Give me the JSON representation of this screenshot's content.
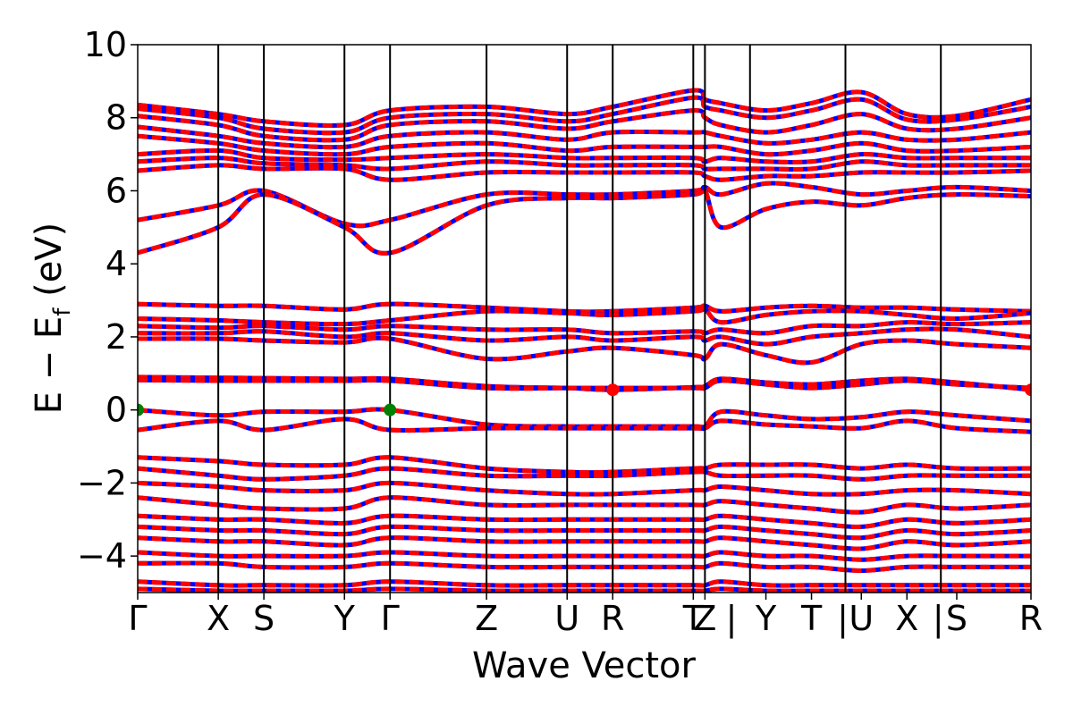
{
  "chart_data": {
    "type": "line",
    "title": "",
    "xlabel": "Wave Vector",
    "ylabel": {
      "main": "E − E",
      "sub": "f",
      "unit": " (eV)"
    },
    "ylim": [
      -5,
      10
    ],
    "yticks": [
      -4,
      -2,
      0,
      2,
      4,
      6,
      8,
      10
    ],
    "ytick_labels": [
      "−4",
      "−2",
      "0",
      "2",
      "4",
      "6",
      "8",
      "10"
    ],
    "grid": false,
    "xlim": [
      0,
      16.85
    ],
    "kpoints": [
      {
        "label": "Γ",
        "x": 0
      },
      {
        "label": "X",
        "x": 1.52
      },
      {
        "label": "S",
        "x": 2.38
      },
      {
        "label": "Y",
        "x": 3.9
      },
      {
        "label": "Γ",
        "x": 4.76
      },
      {
        "label": "Z",
        "x": 6.58
      },
      {
        "label": "U",
        "x": 8.1
      },
      {
        "label": "R",
        "x": 8.96
      },
      {
        "label": "T",
        "x": 10.48
      },
      {
        "label": "Z",
        "x": 10.7
      },
      {
        "label": "|",
        "x": 11.2
      },
      {
        "label": "Y",
        "x": 11.85
      },
      {
        "label": "T",
        "x": 12.71
      },
      {
        "label": "|",
        "x": 13.3
      },
      {
        "label": "U",
        "x": 13.65
      },
      {
        "label": "X",
        "x": 14.51
      },
      {
        "label": "|",
        "x": 15.1
      },
      {
        "label": "S",
        "x": 15.45
      },
      {
        "label": "R",
        "x": 16.85
      }
    ],
    "divisions": [
      1.52,
      2.38,
      3.9,
      4.76,
      6.58,
      8.1,
      8.96,
      10.48,
      10.7,
      11.55,
      13.35,
      15.15
    ],
    "series_styles": {
      "spin_up_color": "#0000ff",
      "spin_down_color": "#ff0000"
    },
    "markers": [
      {
        "x": 0,
        "y": 0,
        "color": "#008000",
        "kind": "VBM"
      },
      {
        "x": 4.76,
        "y": 0,
        "color": "#008000",
        "kind": "VBM"
      },
      {
        "x": 8.96,
        "y": 0.55,
        "color": "#ff0000",
        "kind": "CBM"
      },
      {
        "x": 16.85,
        "y": 0.55,
        "color": "#ff0000",
        "kind": "CBM"
      }
    ],
    "bands": [
      [
        8.35,
        8.1,
        7.9,
        7.8,
        8.2,
        8.3,
        8.1,
        8.3,
        8.75,
        8.5,
        8.4,
        8.2,
        8.4,
        8.7,
        8.1,
        8.05,
        8.5
      ],
      [
        8.25,
        8.0,
        7.7,
        7.6,
        8.0,
        8.1,
        7.9,
        8.1,
        8.55,
        8.3,
        8.2,
        8.0,
        8.2,
        8.5,
        7.95,
        7.95,
        8.3
      ],
      [
        8.05,
        7.8,
        7.5,
        7.4,
        7.8,
        7.9,
        7.7,
        7.9,
        8.2,
        8.0,
        7.8,
        7.6,
        7.8,
        8.1,
        7.7,
        7.7,
        8.0
      ],
      [
        7.75,
        7.5,
        7.3,
        7.2,
        7.5,
        7.6,
        7.4,
        7.6,
        7.6,
        7.6,
        7.5,
        7.3,
        7.4,
        7.6,
        7.4,
        7.4,
        7.6
      ],
      [
        7.5,
        7.3,
        7.1,
        7.0,
        7.2,
        7.3,
        7.1,
        7.2,
        7.2,
        7.2,
        7.2,
        7.0,
        7.1,
        7.3,
        7.1,
        7.1,
        7.2
      ],
      [
        7.0,
        7.1,
        6.9,
        6.85,
        6.9,
        7.0,
        6.9,
        6.9,
        6.9,
        6.8,
        6.9,
        6.8,
        6.8,
        7.0,
        6.9,
        6.9,
        6.9
      ],
      [
        6.8,
        6.9,
        6.75,
        6.7,
        6.6,
        6.8,
        6.7,
        6.7,
        6.7,
        6.6,
        6.6,
        6.6,
        6.6,
        6.8,
        6.7,
        6.7,
        6.7
      ],
      [
        6.55,
        6.7,
        6.6,
        6.6,
        6.3,
        6.5,
        6.5,
        6.5,
        6.5,
        6.4,
        6.3,
        6.4,
        6.4,
        6.5,
        6.5,
        6.5,
        6.55
      ],
      [
        5.2,
        5.6,
        6.0,
        5.1,
        5.2,
        5.9,
        5.9,
        5.9,
        6.0,
        6.1,
        5.9,
        6.2,
        6.1,
        5.9,
        6.0,
        6.1,
        6.0
      ],
      [
        4.3,
        5.0,
        5.9,
        5.0,
        4.3,
        5.6,
        5.8,
        5.8,
        5.9,
        6.0,
        5.0,
        5.5,
        5.7,
        5.6,
        5.8,
        5.9,
        5.85
      ],
      [
        2.9,
        2.85,
        2.85,
        2.75,
        2.9,
        2.8,
        2.7,
        2.7,
        2.8,
        2.85,
        2.7,
        2.8,
        2.85,
        2.8,
        2.8,
        2.75,
        2.7
      ],
      [
        2.5,
        2.45,
        2.4,
        2.35,
        2.45,
        2.7,
        2.65,
        2.6,
        2.7,
        2.75,
        2.4,
        2.6,
        2.7,
        2.7,
        2.6,
        2.5,
        2.65
      ],
      [
        2.3,
        2.25,
        2.3,
        2.2,
        2.3,
        2.2,
        2.2,
        2.1,
        2.15,
        2.1,
        2.2,
        2.1,
        2.3,
        2.3,
        2.4,
        2.35,
        2.4
      ],
      [
        2.1,
        2.1,
        2.15,
        2.0,
        2.1,
        1.9,
        2.0,
        1.9,
        2.0,
        1.9,
        2.0,
        1.8,
        2.0,
        2.1,
        2.2,
        2.2,
        2.0
      ],
      [
        1.95,
        1.95,
        1.9,
        1.85,
        1.95,
        1.4,
        1.6,
        1.7,
        1.5,
        1.4,
        1.8,
        1.5,
        1.3,
        1.8,
        1.9,
        1.8,
        1.7
      ],
      [
        0.9,
        0.88,
        0.87,
        0.85,
        0.85,
        0.65,
        0.6,
        0.55,
        0.62,
        0.65,
        0.85,
        0.75,
        0.7,
        0.8,
        0.85,
        0.75,
        0.55
      ],
      [
        0.82,
        0.8,
        0.8,
        0.8,
        0.8,
        0.6,
        0.6,
        0.6,
        0.6,
        0.6,
        0.8,
        0.7,
        0.6,
        0.7,
        0.8,
        0.7,
        0.6
      ],
      [
        0.0,
        -0.15,
        -0.05,
        -0.05,
        0.0,
        -0.4,
        -0.45,
        -0.45,
        -0.45,
        -0.45,
        -0.05,
        -0.15,
        -0.25,
        -0.2,
        -0.05,
        -0.15,
        -0.3
      ],
      [
        -0.55,
        -0.3,
        -0.55,
        -0.25,
        -0.55,
        -0.5,
        -0.5,
        -0.5,
        -0.5,
        -0.5,
        -0.3,
        -0.4,
        -0.45,
        -0.5,
        -0.3,
        -0.5,
        -0.6
      ],
      [
        -1.3,
        -1.4,
        -1.5,
        -1.5,
        -1.3,
        -1.6,
        -1.7,
        -1.7,
        -1.6,
        -1.6,
        -1.5,
        -1.5,
        -1.5,
        -1.6,
        -1.5,
        -1.6,
        -1.6
      ],
      [
        -1.6,
        -1.8,
        -1.9,
        -1.8,
        -1.6,
        -1.8,
        -1.8,
        -1.8,
        -1.7,
        -1.7,
        -1.8,
        -1.8,
        -1.8,
        -1.9,
        -1.8,
        -1.8,
        -1.8
      ],
      [
        -2.0,
        -2.1,
        -2.2,
        -2.2,
        -2.0,
        -2.2,
        -2.3,
        -2.3,
        -2.2,
        -2.2,
        -2.1,
        -2.2,
        -2.3,
        -2.3,
        -2.2,
        -2.2,
        -2.3
      ],
      [
        -2.4,
        -2.6,
        -2.7,
        -2.7,
        -2.4,
        -2.6,
        -2.6,
        -2.6,
        -2.6,
        -2.6,
        -2.5,
        -2.6,
        -2.7,
        -2.8,
        -2.6,
        -2.7,
        -2.6
      ],
      [
        -2.9,
        -3.0,
        -3.0,
        -3.1,
        -2.9,
        -3.0,
        -3.0,
        -3.0,
        -3.0,
        -3.0,
        -2.9,
        -3.0,
        -3.1,
        -3.2,
        -3.0,
        -3.1,
        -3.0
      ],
      [
        -3.2,
        -3.3,
        -3.3,
        -3.4,
        -3.2,
        -3.3,
        -3.3,
        -3.3,
        -3.3,
        -3.3,
        -3.2,
        -3.3,
        -3.4,
        -3.5,
        -3.3,
        -3.4,
        -3.3
      ],
      [
        -3.5,
        -3.6,
        -3.6,
        -3.7,
        -3.5,
        -3.6,
        -3.6,
        -3.6,
        -3.6,
        -3.6,
        -3.5,
        -3.6,
        -3.7,
        -3.8,
        -3.6,
        -3.7,
        -3.6
      ],
      [
        -3.9,
        -4.0,
        -4.0,
        -4.0,
        -3.9,
        -4.0,
        -4.0,
        -4.0,
        -4.0,
        -4.0,
        -3.9,
        -4.0,
        -4.0,
        -4.1,
        -4.0,
        -4.0,
        -4.0
      ],
      [
        -4.2,
        -4.2,
        -4.3,
        -4.3,
        -4.2,
        -4.3,
        -4.3,
        -4.3,
        -4.3,
        -4.3,
        -4.2,
        -4.3,
        -4.3,
        -4.4,
        -4.3,
        -4.3,
        -4.3
      ],
      [
        -4.7,
        -4.8,
        -4.8,
        -4.8,
        -4.7,
        -4.8,
        -4.8,
        -4.8,
        -4.8,
        -4.8,
        -4.7,
        -4.8,
        -4.8,
        -4.8,
        -4.8,
        -4.8,
        -4.8
      ],
      [
        -4.9,
        -4.95,
        -4.95,
        -4.95,
        -4.9,
        -4.95,
        -4.95,
        -4.95,
        -4.95,
        -4.95,
        -4.9,
        -4.95,
        -4.95,
        -4.95,
        -4.95,
        -4.95,
        -4.95
      ]
    ],
    "band_x": [
      0,
      1.52,
      2.38,
      3.9,
      4.76,
      6.58,
      8.1,
      8.96,
      10.48,
      10.7,
      11.0,
      11.85,
      12.71,
      13.65,
      14.51,
      15.45,
      16.85
    ]
  }
}
